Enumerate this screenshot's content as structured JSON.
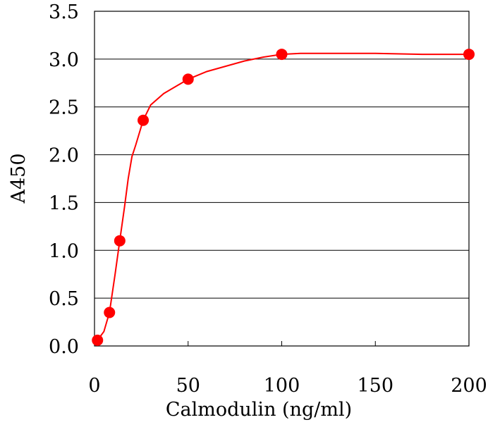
{
  "chart_data": {
    "type": "scatter",
    "title": "",
    "xlabel": "Calmodulin (ng/ml)",
    "ylabel": "A450",
    "xlim": [
      0,
      200
    ],
    "ylim": [
      0,
      3.5
    ],
    "x_ticks": [
      0,
      50,
      100,
      150,
      200
    ],
    "x_tick_labels": [
      "0",
      "50",
      "100",
      "150",
      "200"
    ],
    "y_ticks": [
      0,
      0.5,
      1,
      1.5,
      2,
      2.5,
      3,
      3.5
    ],
    "y_tick_labels": [
      "0.0",
      "0.5",
      "1.0",
      "1.5",
      "2.0",
      "2.5",
      "3.0",
      "3.5"
    ],
    "grid": "horizontal",
    "series": [
      {
        "points": [
          {
            "x": 1.6,
            "y": 0.06
          },
          {
            "x": 8,
            "y": 0.35
          },
          {
            "x": 13.5,
            "y": 1.1
          },
          {
            "x": 26,
            "y": 2.36
          },
          {
            "x": 50,
            "y": 2.79
          },
          {
            "x": 100,
            "y": 3.05
          },
          {
            "x": 200,
            "y": 3.05
          }
        ],
        "fit_curve": [
          {
            "x": 1.6,
            "y": 0.06
          },
          {
            "x": 5,
            "y": 0.15
          },
          {
            "x": 8,
            "y": 0.35
          },
          {
            "x": 11,
            "y": 0.75
          },
          {
            "x": 13.5,
            "y": 1.1
          },
          {
            "x": 16,
            "y": 1.45
          },
          {
            "x": 18,
            "y": 1.75
          },
          {
            "x": 20,
            "y": 1.98
          },
          {
            "x": 22,
            "y": 2.1
          },
          {
            "x": 26,
            "y": 2.36
          },
          {
            "x": 30,
            "y": 2.52
          },
          {
            "x": 37,
            "y": 2.64
          },
          {
            "x": 50,
            "y": 2.79
          },
          {
            "x": 60,
            "y": 2.87
          },
          {
            "x": 80,
            "y": 2.98
          },
          {
            "x": 90,
            "y": 3.02
          },
          {
            "x": 100,
            "y": 3.05
          },
          {
            "x": 110,
            "y": 3.06
          },
          {
            "x": 150,
            "y": 3.06
          },
          {
            "x": 175,
            "y": 3.05
          },
          {
            "x": 200,
            "y": 3.05
          }
        ]
      }
    ]
  },
  "colors": {
    "series": "#ff0000",
    "axis": "#000000",
    "grid": "#000000",
    "background": "#ffffff"
  }
}
